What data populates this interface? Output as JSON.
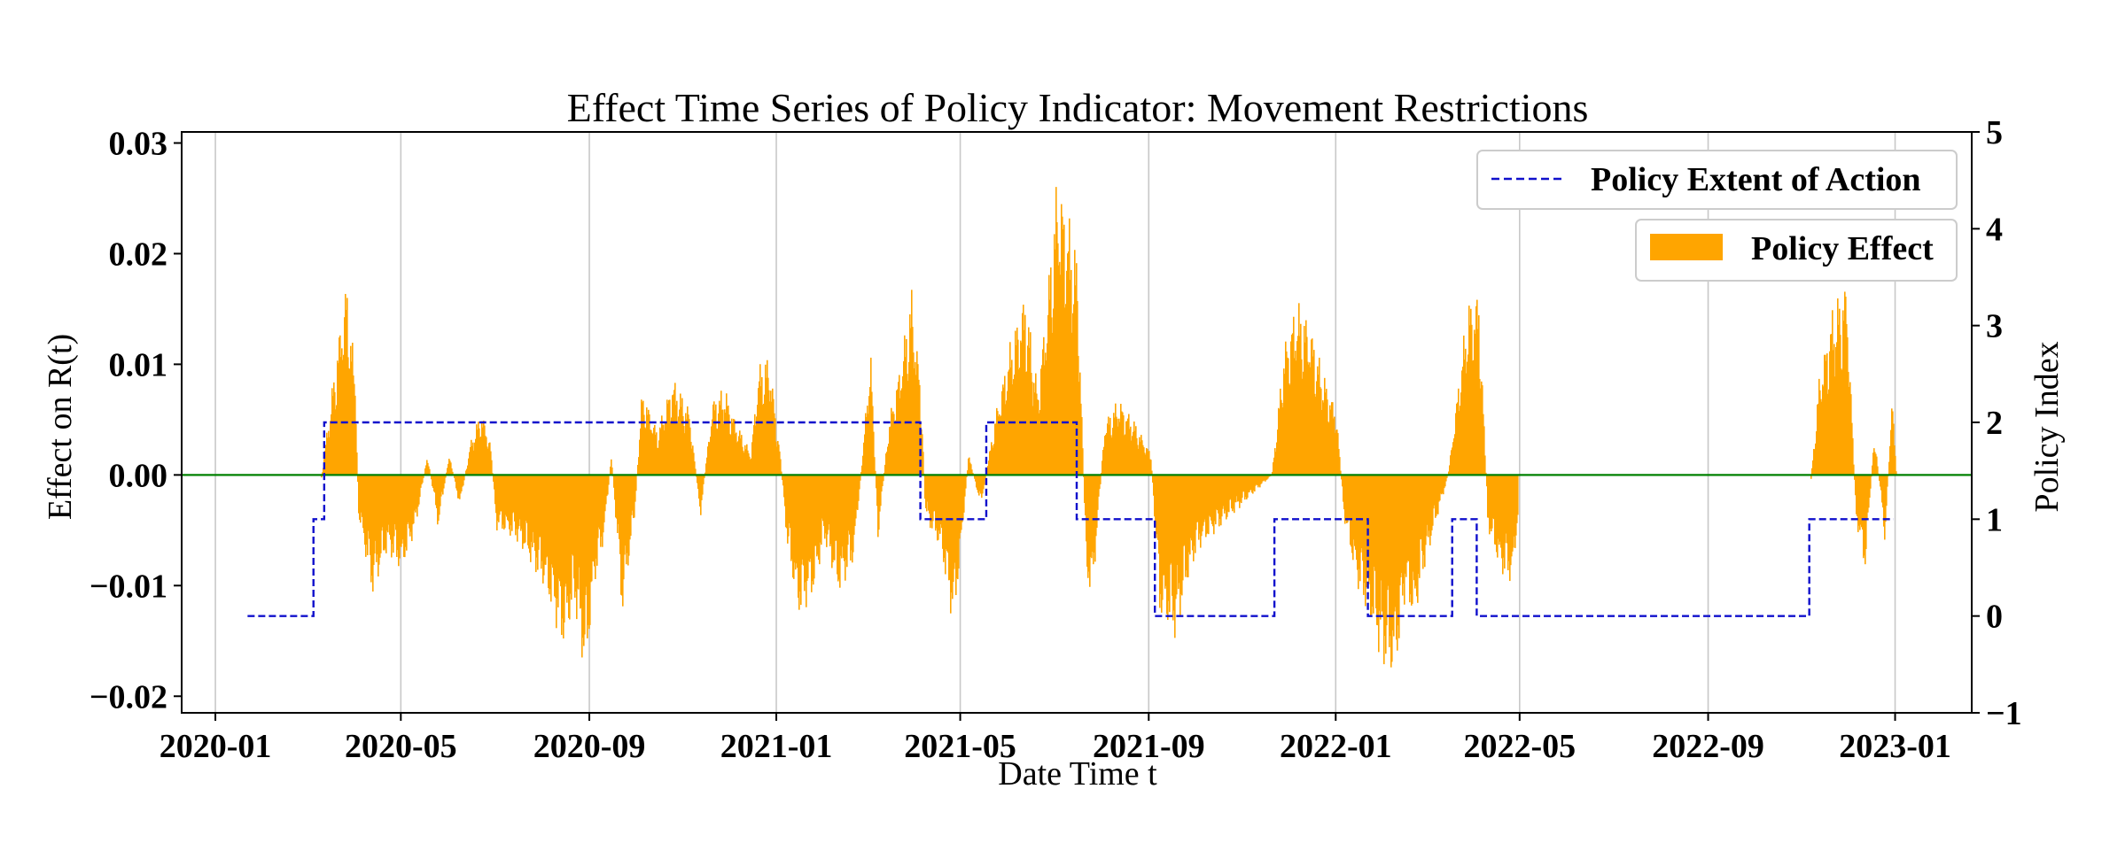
{
  "chart_data": {
    "type": "bar",
    "title": "Effect Time Series of Policy Indicator: Movement Restrictions",
    "xlabel": "Date Time t",
    "ylabel_left": "Effect on R(t)",
    "ylabel_right": "Policy Index",
    "xlim": [
      "2019-12-10",
      "2023-02-20"
    ],
    "ylim_left": [
      -0.0215,
      0.031
    ],
    "ylim_right": [
      -1,
      5
    ],
    "x_ticks": [
      "2020-01",
      "2020-05",
      "2020-09",
      "2021-01",
      "2021-05",
      "2021-09",
      "2022-01",
      "2022-05",
      "2022-09",
      "2023-01"
    ],
    "x_tick_dates": [
      "2020-01-01",
      "2020-05-01",
      "2020-09-01",
      "2021-01-01",
      "2021-05-01",
      "2021-09-01",
      "2022-01-01",
      "2022-05-01",
      "2022-09-01",
      "2023-01-01"
    ],
    "y_ticks_left": [
      "0.03",
      "0.02",
      "0.01",
      "0.00",
      "−0.01",
      "−0.02"
    ],
    "y_tick_values_left": [
      0.03,
      0.02,
      0.01,
      0.0,
      -0.01,
      -0.02
    ],
    "y_ticks_right": [
      "5",
      "4",
      "3",
      "2",
      "1",
      "0",
      "−1"
    ],
    "y_tick_values_right": [
      5,
      4,
      3,
      2,
      1,
      0,
      -1
    ],
    "grid": "vertical",
    "zero_line_color": "#008000",
    "policy_effect": {
      "name": "Policy Effect",
      "color": "#FFA500",
      "envelope": [
        [
          "2020-03-10",
          0.0
        ],
        [
          "2020-03-15",
          0.006
        ],
        [
          "2020-03-22",
          0.014
        ],
        [
          "2020-03-26",
          0.018
        ],
        [
          "2020-04-01",
          0.009
        ],
        [
          "2020-04-03",
          -0.004
        ],
        [
          "2020-04-12",
          -0.011
        ],
        [
          "2020-04-22",
          -0.007
        ],
        [
          "2020-05-01",
          -0.009
        ],
        [
          "2020-05-10",
          -0.005
        ],
        [
          "2020-05-18",
          0.002
        ],
        [
          "2020-05-25",
          -0.005
        ],
        [
          "2020-06-01",
          0.002
        ],
        [
          "2020-06-08",
          -0.003
        ],
        [
          "2020-06-15",
          0.003
        ],
        [
          "2020-06-22",
          0.006
        ],
        [
          "2020-06-28",
          0.003
        ],
        [
          "2020-07-02",
          -0.005
        ],
        [
          "2020-07-15",
          -0.006
        ],
        [
          "2020-08-01",
          -0.01
        ],
        [
          "2020-08-15",
          -0.016
        ],
        [
          "2020-08-22",
          -0.012
        ],
        [
          "2020-08-29",
          -0.019
        ],
        [
          "2020-09-04",
          -0.01
        ],
        [
          "2020-09-10",
          -0.006
        ],
        [
          "2020-09-15",
          0.002
        ],
        [
          "2020-09-22",
          -0.013
        ],
        [
          "2020-09-30",
          -0.004
        ],
        [
          "2020-10-05",
          0.008
        ],
        [
          "2020-10-15",
          0.004
        ],
        [
          "2020-10-25",
          0.009
        ],
        [
          "2020-11-05",
          0.006
        ],
        [
          "2020-11-12",
          -0.004
        ],
        [
          "2020-11-20",
          0.007
        ],
        [
          "2020-11-28",
          0.008
        ],
        [
          "2020-12-05",
          0.005
        ],
        [
          "2020-12-15",
          0.002
        ],
        [
          "2020-12-20",
          0.01
        ],
        [
          "2020-12-27",
          0.011
        ],
        [
          "2021-01-03",
          0.002
        ],
        [
          "2021-01-08",
          -0.007
        ],
        [
          "2021-01-15",
          -0.013
        ],
        [
          "2021-01-25",
          -0.011
        ],
        [
          "2021-02-01",
          -0.006
        ],
        [
          "2021-02-10",
          -0.011
        ],
        [
          "2021-02-20",
          -0.008
        ],
        [
          "2021-02-27",
          0.004
        ],
        [
          "2021-03-03",
          0.012
        ],
        [
          "2021-03-08",
          -0.006
        ],
        [
          "2021-03-15",
          0.005
        ],
        [
          "2021-03-22",
          0.01
        ],
        [
          "2021-03-30",
          0.017
        ],
        [
          "2021-04-05",
          0.008
        ],
        [
          "2021-04-08",
          -0.004
        ],
        [
          "2021-04-18",
          -0.007
        ],
        [
          "2021-04-26",
          -0.014
        ],
        [
          "2021-04-30",
          -0.009
        ],
        [
          "2021-05-06",
          0.002
        ],
        [
          "2021-05-14",
          -0.003
        ],
        [
          "2021-05-24",
          0.006
        ],
        [
          "2021-06-02",
          0.012
        ],
        [
          "2021-06-12",
          0.017
        ],
        [
          "2021-06-20",
          0.008
        ],
        [
          "2021-06-26",
          0.016
        ],
        [
          "2021-07-03",
          0.028
        ],
        [
          "2021-07-10",
          0.024
        ],
        [
          "2021-07-16",
          0.02
        ],
        [
          "2021-07-22",
          -0.01
        ],
        [
          "2021-07-26",
          -0.011
        ],
        [
          "2021-08-03",
          0.005
        ],
        [
          "2021-08-12",
          0.007
        ],
        [
          "2021-08-22",
          0.005
        ],
        [
          "2021-09-02",
          0.002
        ],
        [
          "2021-09-08",
          -0.013
        ],
        [
          "2021-09-18",
          -0.015
        ],
        [
          "2021-09-26",
          -0.01
        ],
        [
          "2021-10-02",
          -0.007
        ],
        [
          "2021-11-20",
          0.0
        ],
        [
          "2021-11-28",
          0.012
        ],
        [
          "2021-12-06",
          0.016
        ],
        [
          "2021-12-15",
          0.014
        ],
        [
          "2021-12-22",
          0.01
        ],
        [
          "2022-01-01",
          0.006
        ],
        [
          "2022-01-06",
          -0.004
        ],
        [
          "2022-01-14",
          -0.01
        ],
        [
          "2022-01-22",
          -0.013
        ],
        [
          "2022-01-30",
          -0.017
        ],
        [
          "2022-02-08",
          -0.019
        ],
        [
          "2022-02-15",
          -0.011
        ],
        [
          "2022-02-21",
          -0.014
        ],
        [
          "2022-02-25",
          -0.01
        ],
        [
          "2022-03-15",
          0.0
        ],
        [
          "2022-03-22",
          0.009
        ],
        [
          "2022-03-28",
          0.016
        ],
        [
          "2022-04-04",
          0.017
        ],
        [
          "2022-04-10",
          -0.005
        ],
        [
          "2022-04-18",
          -0.009
        ],
        [
          "2022-04-26",
          -0.01
        ],
        [
          "2022-04-30",
          -0.003
        ],
        [
          "2022-11-07",
          0.0
        ],
        [
          "2022-11-12",
          0.009
        ],
        [
          "2022-11-20",
          0.015
        ],
        [
          "2022-11-30",
          0.018
        ],
        [
          "2022-12-06",
          -0.004
        ],
        [
          "2022-12-12",
          -0.009
        ],
        [
          "2022-12-18",
          0.004
        ],
        [
          "2022-12-25",
          -0.006
        ],
        [
          "2022-12-30",
          0.008
        ],
        [
          "2023-01-02",
          -0.002
        ]
      ]
    },
    "policy_index": {
      "name": "Policy Extent of Action",
      "color": "#1010CC",
      "style": "dashed",
      "steps": [
        [
          "2020-01-22",
          0
        ],
        [
          "2020-03-05",
          1
        ],
        [
          "2020-03-12",
          2
        ],
        [
          "2021-04-05",
          1
        ],
        [
          "2021-05-18",
          2
        ],
        [
          "2021-07-16",
          1
        ],
        [
          "2021-09-05",
          0
        ],
        [
          "2021-11-22",
          1
        ],
        [
          "2022-01-22",
          0
        ],
        [
          "2022-03-18",
          1
        ],
        [
          "2022-04-03",
          0
        ],
        [
          "2022-11-06",
          1
        ],
        [
          "2022-12-31",
          1
        ]
      ]
    },
    "legend": {
      "placement": "top-right",
      "entries": [
        "Policy Extent of Action",
        "Policy Effect"
      ]
    }
  }
}
